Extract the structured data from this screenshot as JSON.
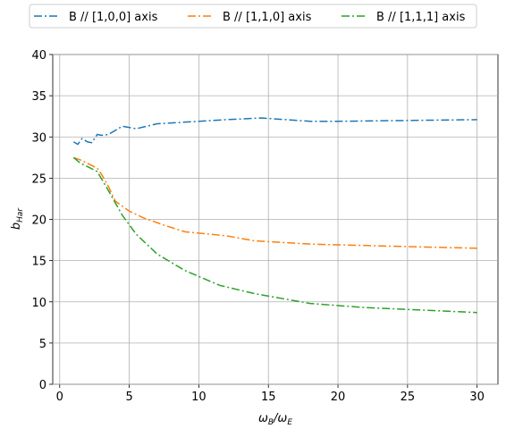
{
  "chart_data": {
    "type": "line",
    "xlabel": [
      "ω",
      "B",
      "/ω",
      "E"
    ],
    "ylabel": [
      "b",
      "Har"
    ],
    "xlim": [
      -0.5,
      31.5
    ],
    "xticks": [
      0,
      5,
      10,
      15,
      20,
      25,
      30
    ],
    "ylim": [
      0,
      40
    ],
    "yticks": [
      0,
      5,
      10,
      15,
      20,
      25,
      30,
      35,
      40
    ],
    "grid": true,
    "legend": "top",
    "series": [
      {
        "name": "B // [1,0,0] axis",
        "color": "#1f77b4",
        "x": [
          1,
          1.3,
          1.6,
          2,
          2.3,
          2.7,
          3,
          3.5,
          4.5,
          5.5,
          7,
          8,
          10,
          12,
          14.5,
          18,
          20,
          25,
          30
        ],
        "values": [
          29.4,
          29.1,
          29.8,
          29.4,
          29.3,
          30.3,
          30.2,
          30.3,
          31.3,
          31.0,
          31.6,
          31.7,
          31.9,
          32.1,
          32.3,
          31.9,
          31.9,
          32.0,
          32.1
        ]
      },
      {
        "name": "B // [1,1,0] axis",
        "color": "#ff7f0e",
        "x": [
          1,
          1.5,
          2,
          2.7,
          3,
          3.5,
          4,
          5,
          6,
          7.5,
          9,
          12,
          14,
          18,
          25,
          30
        ],
        "values": [
          27.5,
          27.2,
          26.8,
          26.2,
          25.5,
          24.0,
          22.2,
          21.0,
          20.2,
          19.3,
          18.5,
          18.0,
          17.4,
          17.0,
          16.7,
          16.5
        ]
      },
      {
        "name": "B // [1,1,1] axis",
        "color": "#2ca02c",
        "x": [
          1,
          1.5,
          2,
          2.7,
          3.5,
          4.5,
          5.5,
          7,
          9,
          11.5,
          14,
          18,
          22,
          26,
          30
        ],
        "values": [
          27.5,
          26.8,
          26.4,
          25.8,
          23.5,
          20.5,
          18.2,
          15.8,
          13.8,
          12.0,
          11.0,
          9.8,
          9.3,
          9.0,
          8.7
        ]
      }
    ]
  }
}
